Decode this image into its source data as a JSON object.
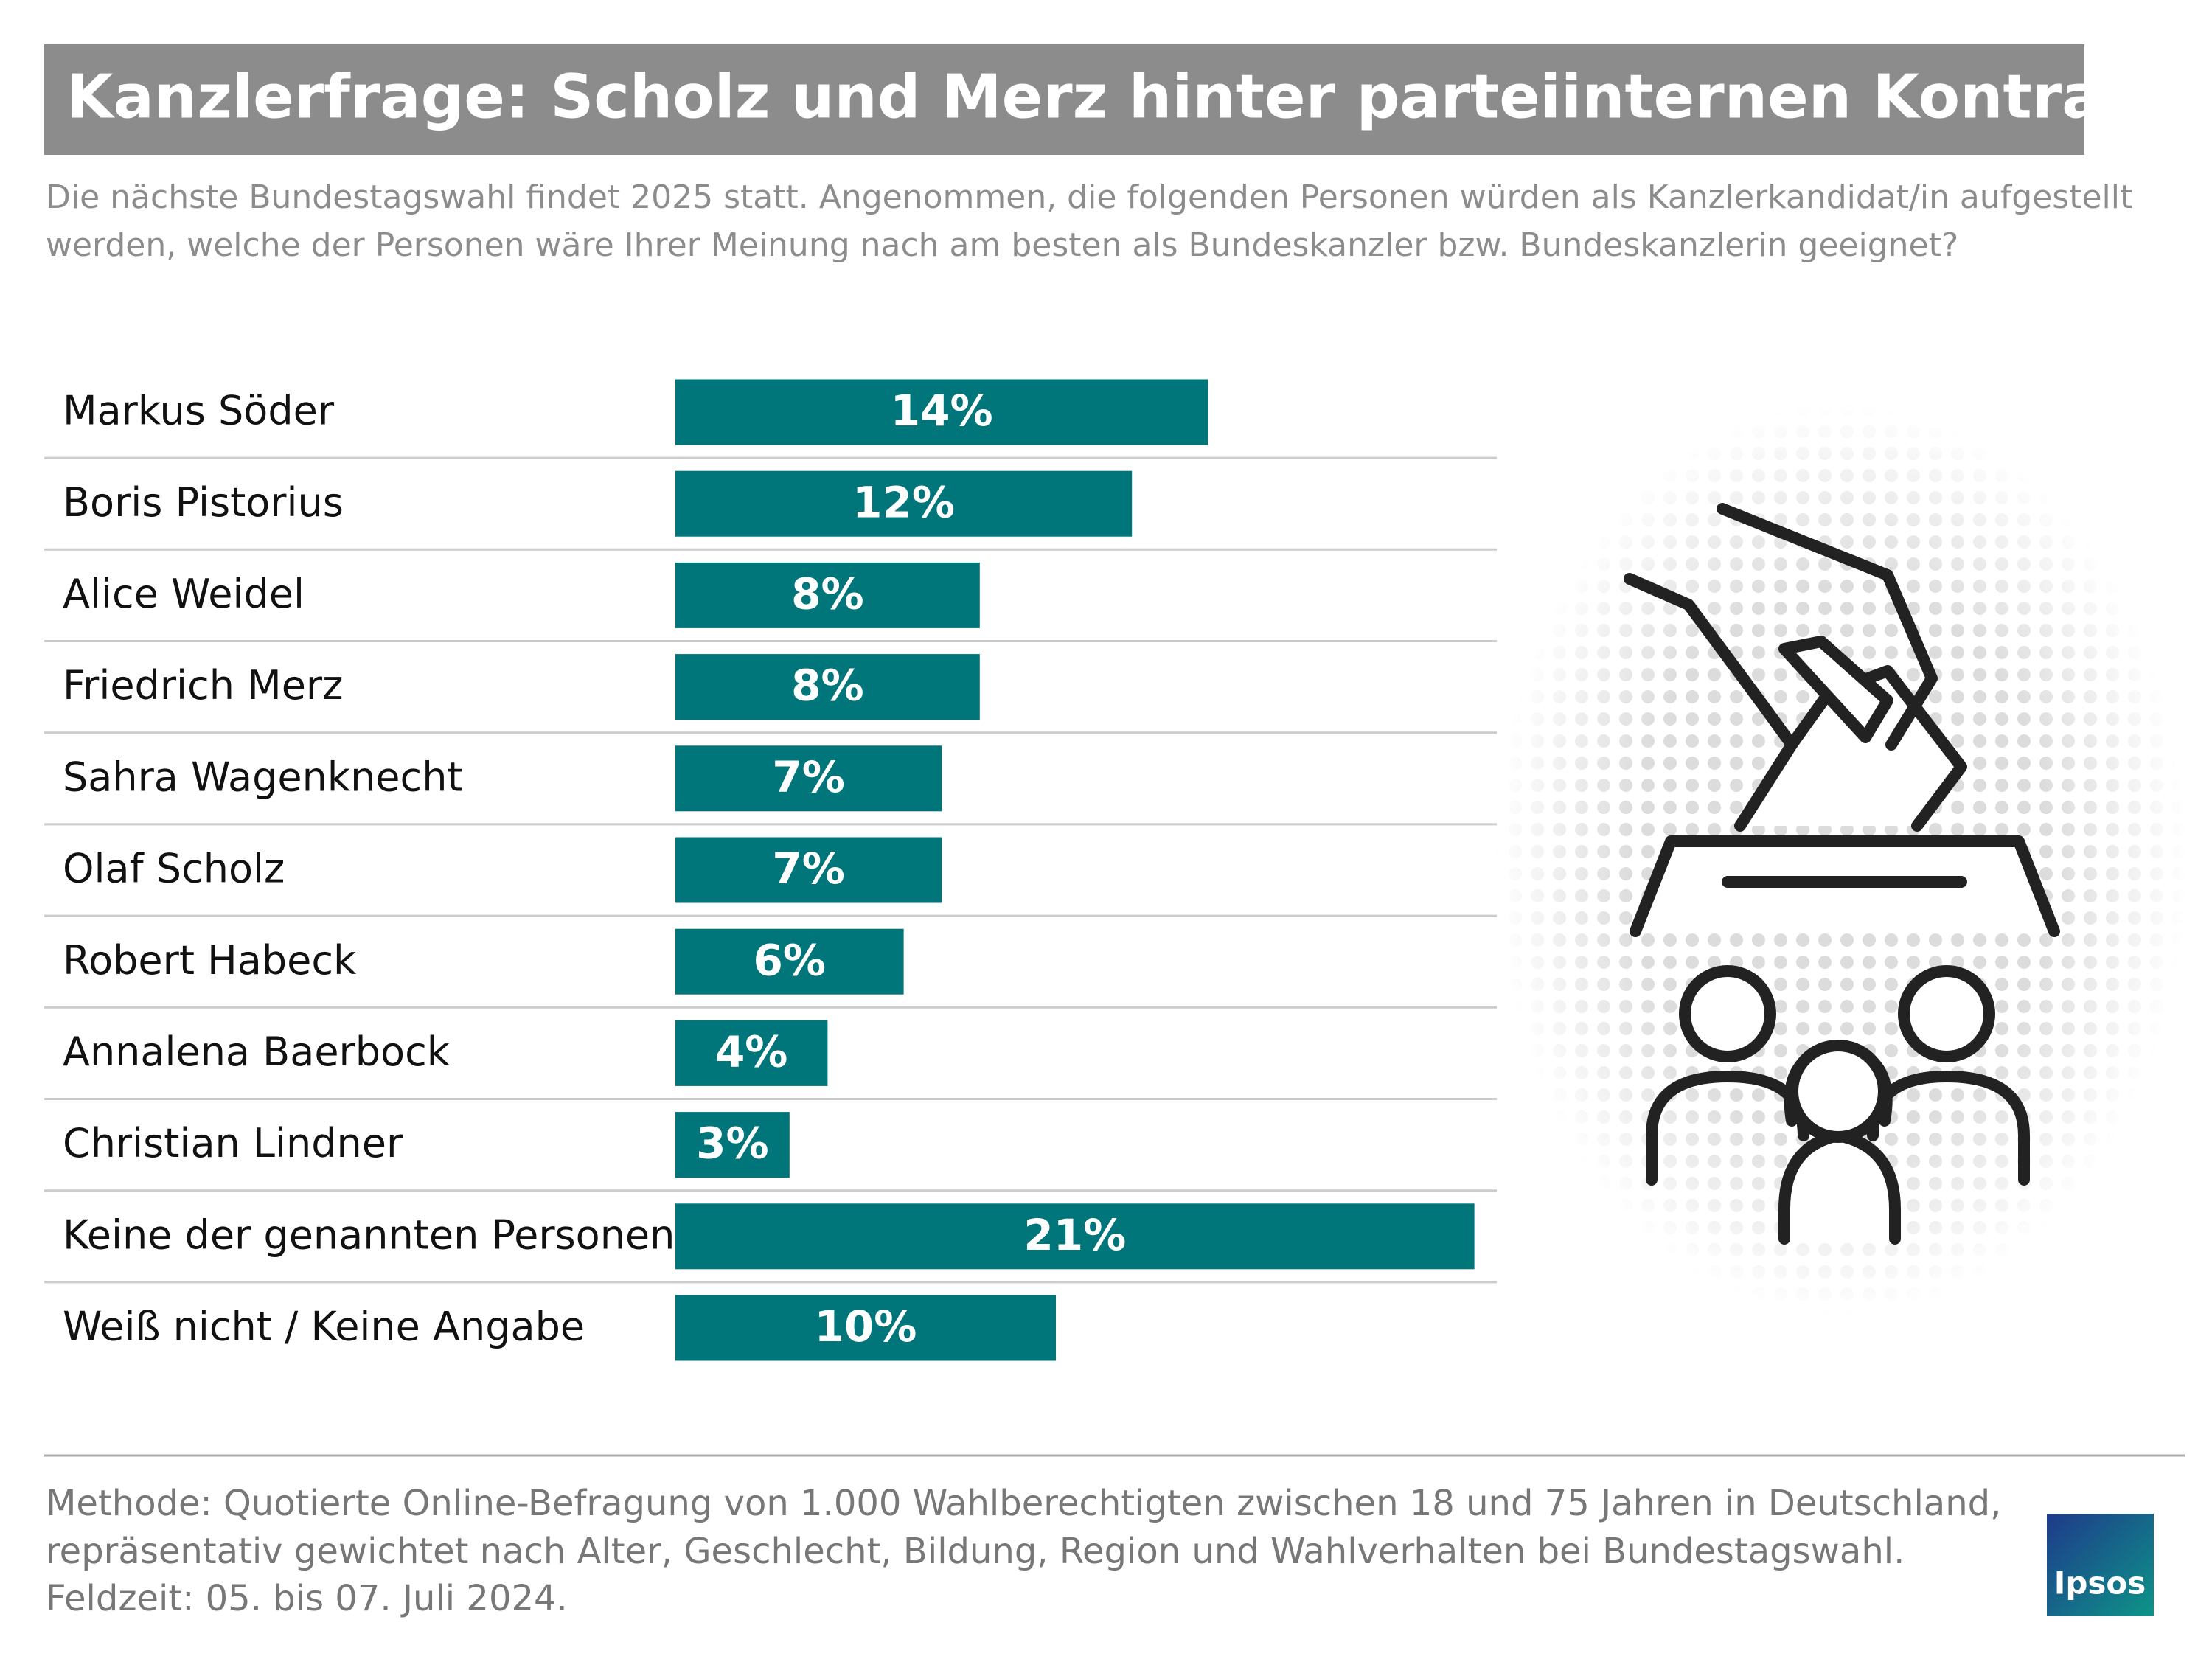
{
  "chart_data": {
    "type": "bar",
    "orientation": "horizontal",
    "title": "Kanzlerfrage: Scholz und Merz hinter parteiinternen Kontrahenten",
    "subtitle": [
      "Die nächste Bundestagswahl findet 2025 statt. Angenommen, die folgenden Personen würden als Kanzlerkandidat/in aufgestellt",
      "werden, welche der Personen wäre Ihrer Meinung nach am besten als Bundeskanzler bzw. Bundeskanzlerin geeignet?"
    ],
    "categories": [
      "Markus Söder",
      "Boris Pistorius",
      "Alice Weidel",
      "Friedrich Merz",
      "Sahra Wagenknecht",
      "Olaf Scholz",
      "Robert Habeck",
      "Annalena Baerbock",
      "Christian Lindner",
      "Keine der genannten Personen",
      "Weiß nicht / Keine Angabe"
    ],
    "values": [
      14,
      12,
      8,
      8,
      7,
      7,
      6,
      4,
      3,
      21,
      10
    ],
    "value_labels": [
      "14%",
      "12%",
      "8%",
      "8%",
      "7%",
      "7%",
      "6%",
      "4%",
      "3%",
      "21%",
      "10%"
    ],
    "color": "#00767a",
    "notes": [
      "Methode: Quotierte Online-Befragung von 1.000 Wahlberechtigten zwischen 18 und 75 Jahren in Deutschland,",
      "repräsentativ gewichtet nach Alter, Geschlecht, Bildung, Region und Wahlverhalten bei Bundestagswahl.",
      "Feldzeit: 05. bis 07. Juli 2024."
    ],
    "logo": "Ipsos"
  }
}
